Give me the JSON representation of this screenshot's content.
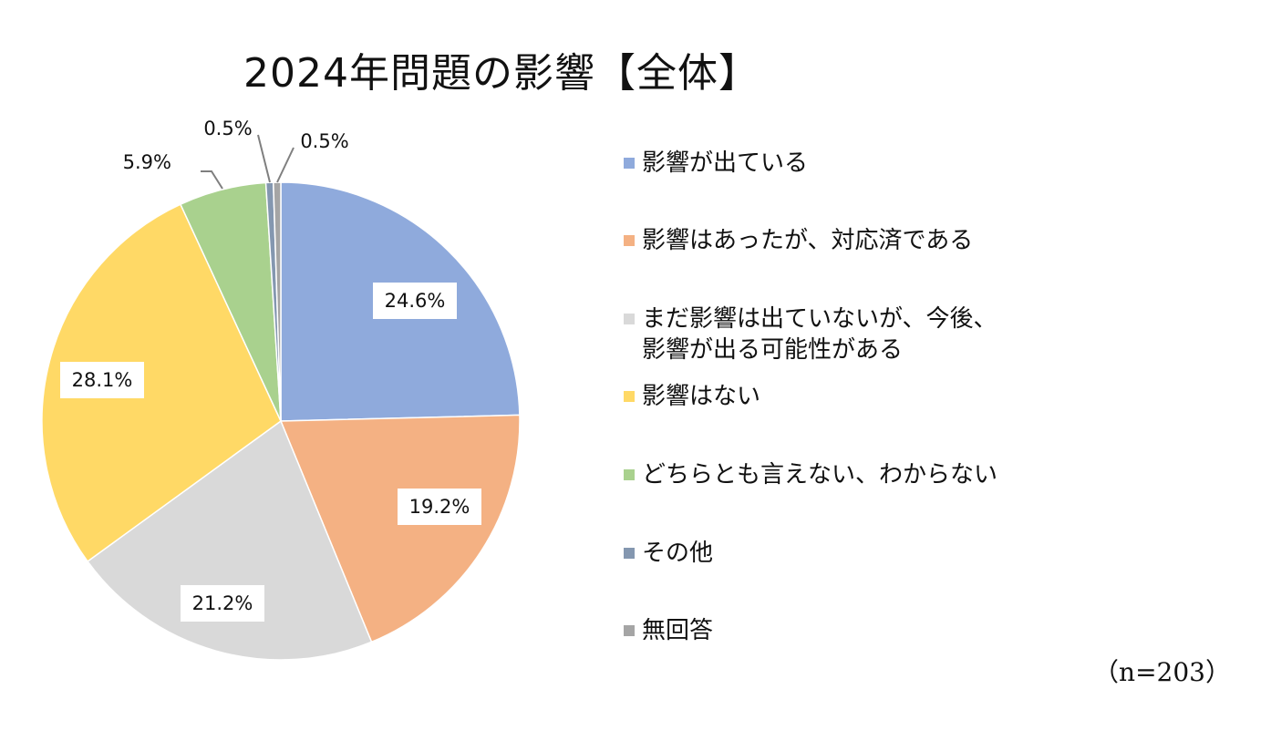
{
  "chart_data": {
    "type": "pie",
    "title": "2024年問題の影響【全体】",
    "note": "（n=203）",
    "slices": [
      {
        "label": "影響が出ている",
        "value": 24.6,
        "value_label": "24.6%",
        "color": "#8FAADC"
      },
      {
        "label": "影響はあったが、対応済である",
        "value": 19.2,
        "value_label": "19.2%",
        "color": "#F4B183"
      },
      {
        "label": "まだ影響は出ていないが、今後、\n影響が出る可能性がある",
        "value": 21.2,
        "value_label": "21.2%",
        "color": "#D9D9D9"
      },
      {
        "label": "影響はない",
        "value": 28.1,
        "value_label": "28.1%",
        "color": "#FFD966"
      },
      {
        "label": "どちらとも言えない、わからない",
        "value": 5.9,
        "value_label": "5.9%",
        "color": "#A9D18E"
      },
      {
        "label": "その他",
        "value": 0.5,
        "value_label": "0.5%",
        "color": "#8497B0"
      },
      {
        "label": "無回答",
        "value": 0.5,
        "value_label": "0.5%",
        "color": "#A5A5A5"
      }
    ],
    "legend_position": "right",
    "start_angle": "12 o'clock",
    "direction": "clockwise"
  }
}
